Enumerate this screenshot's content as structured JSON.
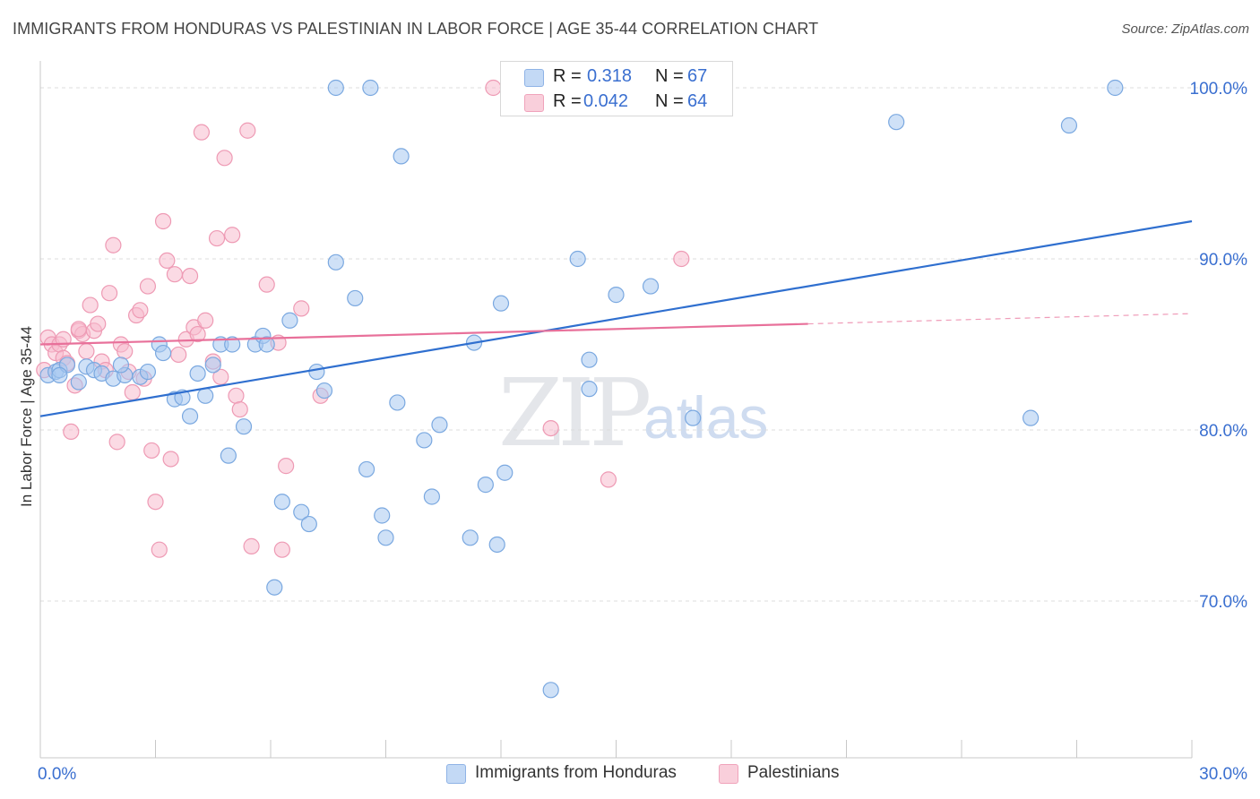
{
  "title": "IMMIGRANTS FROM HONDURAS VS PALESTINIAN IN LABOR FORCE | AGE 35-44 CORRELATION CHART",
  "source": "Source: ZipAtlas.com",
  "watermark": {
    "zip": "ZIP",
    "atlas": "atlas"
  },
  "legend_top": [
    {
      "r_label": "R =",
      "r_value": "0.318",
      "n_label": "N =",
      "n_value": "67",
      "color": "#a8c8f0"
    },
    {
      "r_label": "R =",
      "r_value": "0.042",
      "n_label": "N =",
      "n_value": "64",
      "color": "#f7bccd"
    }
  ],
  "legend_bottom": [
    {
      "label": "Immigrants from Honduras",
      "color": "#a8c8f0"
    },
    {
      "label": "Palestinians",
      "color": "#f7bccd"
    }
  ],
  "colors": {
    "blue_fill": "#a8c8f0",
    "blue_stroke": "#7aa8e0",
    "blue_line": "#2f6fcf",
    "pink_fill": "#f7bccd",
    "pink_stroke": "#ee9ab4",
    "pink_line": "#e8709a",
    "tick_label": "#3a6fd0",
    "grid": "#dcdcdc"
  },
  "chart_data": {
    "type": "scatter",
    "xlabel": "",
    "ylabel": "In Labor Force | Age 35-44",
    "xlim": [
      0,
      30
    ],
    "ylim": [
      60,
      102
    ],
    "x_tick_labels": [
      {
        "value": 0,
        "label": "0.0%"
      },
      {
        "value": 30,
        "label": "30.0%"
      }
    ],
    "y_tick_labels": [
      {
        "value": 100,
        "label": "100.0%"
      },
      {
        "value": 90,
        "label": "90.0%"
      },
      {
        "value": 80,
        "label": "80.0%"
      },
      {
        "value": 70,
        "label": "70.0%"
      }
    ],
    "grid": true,
    "series": [
      {
        "name": "Immigrants from Honduras",
        "trend": {
          "x": [
            0,
            30
          ],
          "y": [
            80.8,
            92.2
          ]
        },
        "points": [
          [
            0.2,
            83.2
          ],
          [
            0.4,
            83.4
          ],
          [
            0.5,
            83.5
          ],
          [
            0.7,
            83.8
          ],
          [
            1.0,
            82.8
          ],
          [
            1.2,
            83.7
          ],
          [
            1.4,
            83.5
          ],
          [
            1.6,
            83.3
          ],
          [
            1.9,
            83.0
          ],
          [
            2.2,
            83.2
          ],
          [
            2.1,
            83.8
          ],
          [
            2.6,
            83.1
          ],
          [
            2.8,
            83.4
          ],
          [
            3.1,
            85.0
          ],
          [
            3.2,
            84.5
          ],
          [
            3.5,
            81.8
          ],
          [
            3.7,
            81.9
          ],
          [
            3.9,
            80.8
          ],
          [
            4.1,
            83.3
          ],
          [
            4.3,
            82.0
          ],
          [
            4.5,
            83.8
          ],
          [
            4.7,
            85.0
          ],
          [
            4.9,
            78.5
          ],
          [
            5.0,
            85.0
          ],
          [
            5.3,
            80.2
          ],
          [
            5.6,
            85.0
          ],
          [
            5.8,
            85.5
          ],
          [
            5.9,
            85.0
          ],
          [
            6.1,
            70.8
          ],
          [
            6.3,
            75.8
          ],
          [
            6.5,
            86.4
          ],
          [
            6.8,
            75.2
          ],
          [
            7.0,
            74.5
          ],
          [
            7.2,
            83.4
          ],
          [
            7.4,
            82.3
          ],
          [
            7.7,
            89.8
          ],
          [
            7.7,
            100.0
          ],
          [
            8.2,
            87.7
          ],
          [
            8.5,
            77.7
          ],
          [
            8.6,
            100.0
          ],
          [
            8.9,
            75.0
          ],
          [
            9.0,
            73.7
          ],
          [
            9.3,
            81.6
          ],
          [
            9.4,
            96.0
          ],
          [
            10.0,
            79.4
          ],
          [
            10.2,
            76.1
          ],
          [
            10.4,
            80.3
          ],
          [
            11.2,
            73.7
          ],
          [
            11.3,
            85.1
          ],
          [
            11.6,
            76.8
          ],
          [
            11.9,
            73.3
          ],
          [
            12.0,
            87.4
          ],
          [
            12.1,
            77.5
          ],
          [
            13.3,
            64.8
          ],
          [
            14.3,
            84.1
          ],
          [
            14.0,
            90.0
          ],
          [
            14.3,
            82.4
          ],
          [
            15.0,
            87.9
          ],
          [
            15.9,
            88.4
          ],
          [
            17.0,
            80.7
          ],
          [
            22.3,
            98.0
          ],
          [
            25.8,
            80.7
          ],
          [
            26.8,
            97.8
          ],
          [
            28.0,
            100.0
          ],
          [
            13.2,
            100.0
          ],
          [
            12.8,
            100.0
          ],
          [
            0.5,
            83.2
          ]
        ]
      },
      {
        "name": "Palestinians",
        "trend": {
          "x": [
            0,
            20
          ],
          "y": [
            85.0,
            86.2
          ]
        },
        "trend_dashed": {
          "x": [
            20,
            30
          ],
          "y": [
            86.2,
            86.8
          ]
        },
        "points": [
          [
            0.1,
            83.5
          ],
          [
            0.2,
            85.4
          ],
          [
            0.3,
            85.0
          ],
          [
            0.4,
            84.5
          ],
          [
            0.5,
            85.0
          ],
          [
            0.6,
            84.2
          ],
          [
            0.7,
            83.9
          ],
          [
            0.8,
            79.9
          ],
          [
            0.9,
            82.6
          ],
          [
            1.0,
            85.8
          ],
          [
            1.1,
            85.6
          ],
          [
            1.2,
            84.6
          ],
          [
            1.3,
            87.3
          ],
          [
            1.4,
            85.8
          ],
          [
            1.5,
            86.2
          ],
          [
            1.6,
            84.0
          ],
          [
            1.7,
            83.5
          ],
          [
            1.8,
            88.0
          ],
          [
            1.9,
            90.8
          ],
          [
            2.0,
            79.3
          ],
          [
            2.1,
            85.0
          ],
          [
            2.2,
            84.6
          ],
          [
            2.3,
            83.4
          ],
          [
            2.4,
            82.2
          ],
          [
            2.5,
            86.7
          ],
          [
            2.6,
            87.0
          ],
          [
            2.7,
            83.0
          ],
          [
            2.8,
            88.4
          ],
          [
            2.9,
            78.8
          ],
          [
            3.0,
            75.8
          ],
          [
            3.1,
            73.0
          ],
          [
            3.2,
            92.2
          ],
          [
            3.3,
            89.9
          ],
          [
            3.4,
            78.3
          ],
          [
            3.5,
            89.1
          ],
          [
            3.6,
            84.4
          ],
          [
            3.8,
            85.3
          ],
          [
            3.9,
            89.0
          ],
          [
            4.0,
            86.0
          ],
          [
            4.1,
            85.6
          ],
          [
            4.2,
            97.4
          ],
          [
            4.3,
            86.4
          ],
          [
            4.5,
            84.0
          ],
          [
            4.6,
            91.2
          ],
          [
            4.7,
            83.1
          ],
          [
            4.8,
            95.9
          ],
          [
            5.0,
            91.4
          ],
          [
            5.1,
            82.0
          ],
          [
            5.2,
            81.2
          ],
          [
            5.4,
            97.5
          ],
          [
            5.5,
            73.2
          ],
          [
            5.9,
            88.5
          ],
          [
            6.2,
            85.1
          ],
          [
            6.3,
            73.0
          ],
          [
            6.4,
            77.9
          ],
          [
            6.8,
            87.1
          ],
          [
            7.3,
            82.0
          ],
          [
            11.8,
            100.0
          ],
          [
            13.0,
            100.0
          ],
          [
            13.3,
            80.1
          ],
          [
            14.8,
            77.1
          ],
          [
            16.7,
            90.0
          ],
          [
            0.6,
            85.3
          ],
          [
            1.0,
            85.9
          ]
        ]
      }
    ]
  }
}
